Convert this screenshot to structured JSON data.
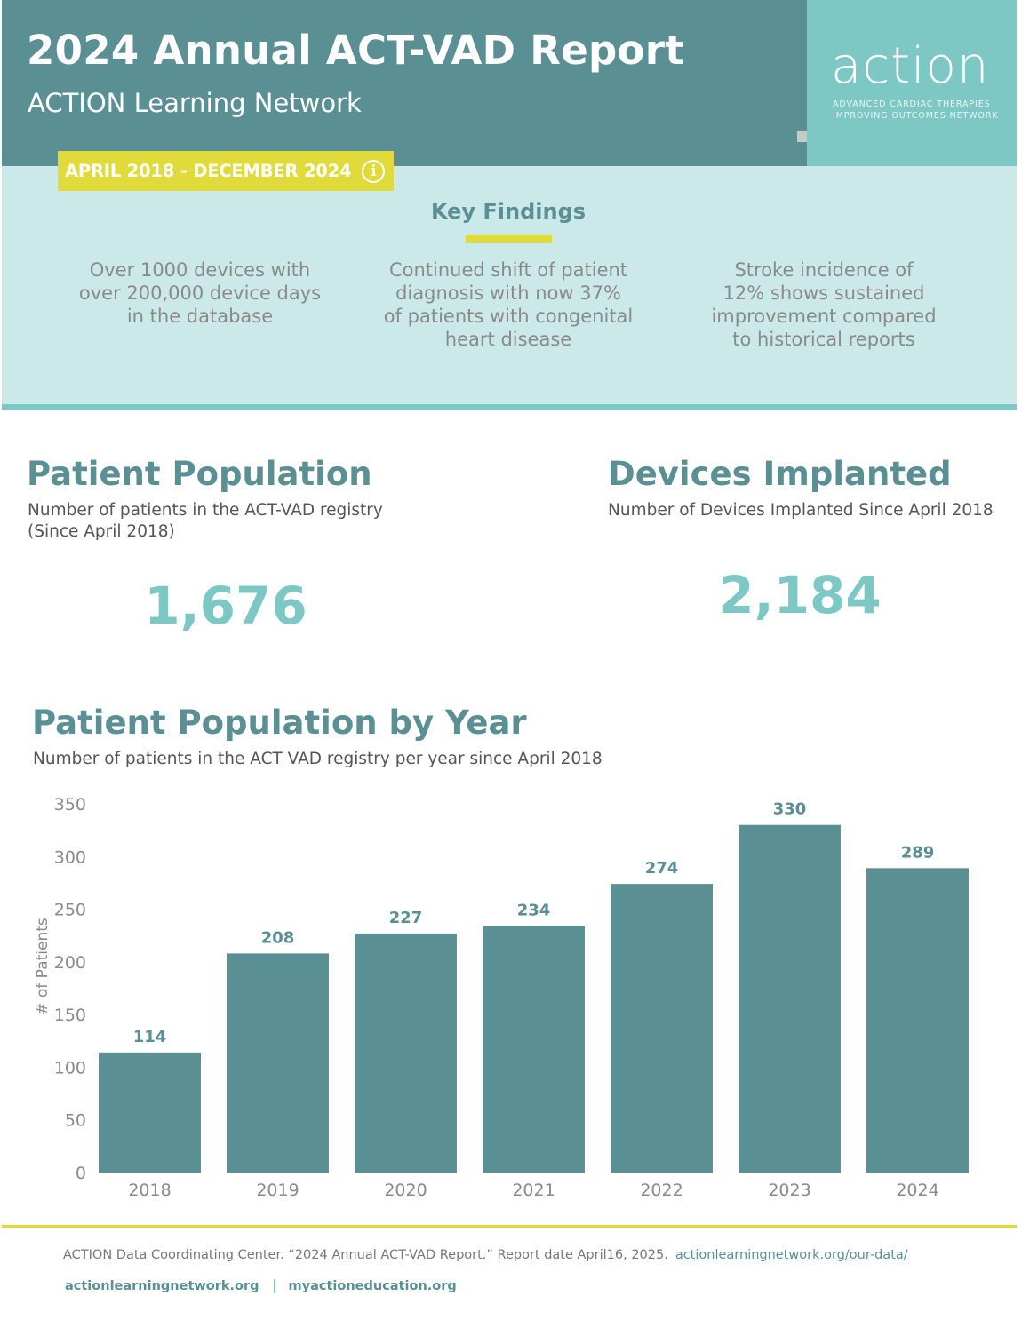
{
  "header": {
    "title": "2024 Annual ACT-VAD Report",
    "subtitle": "ACTION Learning Network",
    "date_range": "APRIL 2018 - DECEMBER 2024",
    "info_icon": "info-circle-icon"
  },
  "logo": {
    "wordmark": "action",
    "line1": "ADVANCED CARDIAC THERAPIES",
    "line2": "IMPROVING OUTCOMES NETWORK"
  },
  "key_findings": {
    "title": "Key Findings",
    "items": [
      {
        "lines": [
          "Over 1000 devices with",
          "over 200,000 device days",
          "in the database"
        ]
      },
      {
        "lines": [
          "Continued shift of patient",
          "diagnosis with now 37%",
          "of patients with congenital",
          "heart disease"
        ]
      },
      {
        "lines": [
          "Stroke incidence of",
          "12% shows sustained",
          "improvement compared",
          "to historical reports"
        ]
      }
    ]
  },
  "patient_population": {
    "title": "Patient Population",
    "subtitle_line1": "Number of patients in the ACT-VAD registry",
    "subtitle_line2": "(Since April 2018)",
    "value": "1,676"
  },
  "devices_implanted": {
    "title": "Devices Implanted",
    "subtitle": "Number of Devices Implanted Since April 2018",
    "value": "2,184"
  },
  "chart_section": {
    "title": "Patient Population by Year",
    "subtitle": "Number of patients in the ACT VAD registry per year since April 2018"
  },
  "chart_data": {
    "type": "bar",
    "title": "Patient Population by Year",
    "subtitle": "Number of patients in the ACT VAD registry per year since April 2018",
    "xlabel": "",
    "ylabel": "# of Patients",
    "categories": [
      "2018",
      "2019",
      "2020",
      "2021",
      "2022",
      "2023",
      "2024"
    ],
    "values": [
      114,
      208,
      227,
      234,
      274,
      330,
      289
    ],
    "ylim": [
      0,
      350
    ],
    "yticks": [
      0,
      50,
      100,
      150,
      200,
      250,
      300,
      350
    ],
    "grid": false,
    "legend": "none",
    "bar_color": "#5a8f94"
  },
  "footer": {
    "citation": "ACTION Data Coordinating Center. “2024 Annual ACT-VAD Report.” Report date April16, 2025.",
    "citation_link": "actionlearningnetwork.org/our-data/",
    "link1": "actionlearningnetwork.org",
    "link2": "myactioneducation.org"
  },
  "colors": {
    "header_teal": "#5a8f94",
    "accent_teal": "#7dc8c4",
    "light_band": "#cae9e8",
    "accent_yellow": "#e0da3b"
  }
}
